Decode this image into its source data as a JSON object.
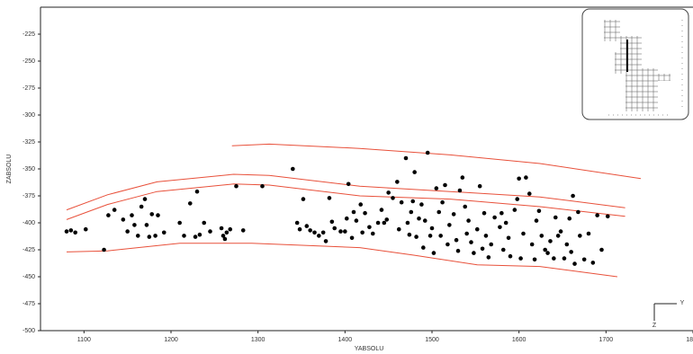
{
  "chart_data": {
    "type": "scatter",
    "x_label": "YABSOLU",
    "y_label": "ZABSOLU",
    "xlim": [
      1050,
      1800
    ],
    "ylim": [
      -500,
      -200
    ],
    "xticks": [
      1100,
      1200,
      1300,
      1400,
      1500,
      1600,
      1700,
      1800
    ],
    "yticks": [
      -225,
      -250,
      -275,
      -300,
      -325,
      -350,
      -375,
      -400,
      -425,
      -450,
      -475,
      -500
    ],
    "annotations": [
      "Y",
      "Z"
    ],
    "series": [
      {
        "color": "#000000",
        "x": [
          1080,
          1085,
          1090,
          1102,
          1123,
          1128,
          1135,
          1145,
          1150,
          1155,
          1158,
          1162,
          1166,
          1170,
          1172,
          1175,
          1178,
          1182,
          1185,
          1192,
          1210,
          1215,
          1222,
          1228,
          1230,
          1233,
          1238,
          1245,
          1258,
          1260,
          1262,
          1264,
          1268,
          1275,
          1283,
          1305,
          1340,
          1345,
          1348,
          1352,
          1356,
          1360,
          1365,
          1370,
          1375,
          1378,
          1382,
          1385,
          1388,
          1395,
          1400,
          1402,
          1404,
          1408,
          1410,
          1413,
          1418,
          1420,
          1423,
          1428,
          1432,
          1438,
          1442,
          1445,
          1448,
          1450,
          1455,
          1460,
          1462,
          1465,
          1470,
          1472,
          1474,
          1476,
          1478,
          1480,
          1482,
          1485,
          1488,
          1490,
          1492,
          1495,
          1498,
          1500,
          1502,
          1505,
          1508,
          1510,
          1512,
          1515,
          1518,
          1520,
          1525,
          1528,
          1530,
          1532,
          1535,
          1538,
          1540,
          1542,
          1545,
          1548,
          1552,
          1555,
          1558,
          1560,
          1562,
          1565,
          1568,
          1572,
          1578,
          1580,
          1582,
          1585,
          1588,
          1590,
          1595,
          1598,
          1600,
          1602,
          1605,
          1608,
          1612,
          1615,
          1618,
          1620,
          1623,
          1626,
          1630,
          1633,
          1636,
          1640,
          1642,
          1645,
          1648,
          1652,
          1655,
          1658,
          1660,
          1662,
          1664,
          1668,
          1670,
          1675,
          1680,
          1685,
          1690,
          1695,
          1702
        ],
        "values": [
          -408,
          -407,
          -409,
          -406,
          -425,
          -393,
          -388,
          -397,
          -408,
          -393,
          -402,
          -412,
          -385,
          -378,
          -402,
          -413,
          -392,
          -412,
          -393,
          -409,
          -400,
          -412,
          -382,
          -413,
          -371,
          -411,
          -400,
          -408,
          -405,
          -412,
          -415,
          -409,
          -406,
          -366,
          -407,
          -366,
          -350,
          -400,
          -406,
          -378,
          -403,
          -407,
          -409,
          -412,
          -409,
          -417,
          -377,
          -399,
          -405,
          -408,
          -408,
          -396,
          -364,
          -414,
          -390,
          -398,
          -383,
          -409,
          -391,
          -404,
          -410,
          -400,
          -388,
          -400,
          -397,
          -372,
          -377,
          -362,
          -406,
          -381,
          -340,
          -400,
          -411,
          -390,
          -380,
          -353,
          -413,
          -396,
          -383,
          -423,
          -398,
          -335,
          -412,
          -405,
          -428,
          -368,
          -390,
          -412,
          -381,
          -365,
          -420,
          -402,
          -392,
          -416,
          -426,
          -370,
          -358,
          -385,
          -410,
          -398,
          -418,
          -428,
          -406,
          -366,
          -424,
          -391,
          -412,
          -432,
          -420,
          -395,
          -404,
          -391,
          -425,
          -400,
          -414,
          -431,
          -388,
          -378,
          -359,
          -433,
          -410,
          -358,
          -373,
          -420,
          -434,
          -398,
          -389,
          -412,
          -425,
          -428,
          -417,
          -433,
          -395,
          -412,
          -408,
          -433,
          -420,
          -396,
          -427,
          -375,
          -438,
          -390,
          -412,
          -434,
          -410,
          -437,
          -393,
          -425,
          -394
        ]
      }
    ],
    "lines": [
      {
        "color": "#e8503a",
        "x": [
          1270,
          1313,
          1417,
          1521,
          1624,
          1740
        ],
        "values": [
          -328.6,
          -327,
          -331,
          -337,
          -345,
          -359
        ]
      },
      {
        "color": "#e8503a",
        "x": [
          1080,
          1127,
          1184,
          1272,
          1313,
          1417,
          1521,
          1624,
          1722
        ],
        "values": [
          -388,
          -374,
          -362,
          -355,
          -356,
          -366,
          -371,
          -376,
          -386
        ]
      },
      {
        "color": "#e8503a",
        "x": [
          1080,
          1127,
          1184,
          1272,
          1313,
          1417,
          1521,
          1624,
          1722
        ],
        "values": [
          -397,
          -383,
          -371,
          -364,
          -365,
          -375,
          -378,
          -385,
          -394
        ]
      },
      {
        "color": "#e8503a",
        "x": [
          1080,
          1127,
          1210,
          1293,
          1417,
          1479,
          1552,
          1624,
          1713
        ],
        "values": [
          -427,
          -426,
          -419,
          -419,
          -423,
          -430,
          -439,
          -440.5,
          -450
        ]
      }
    ]
  }
}
